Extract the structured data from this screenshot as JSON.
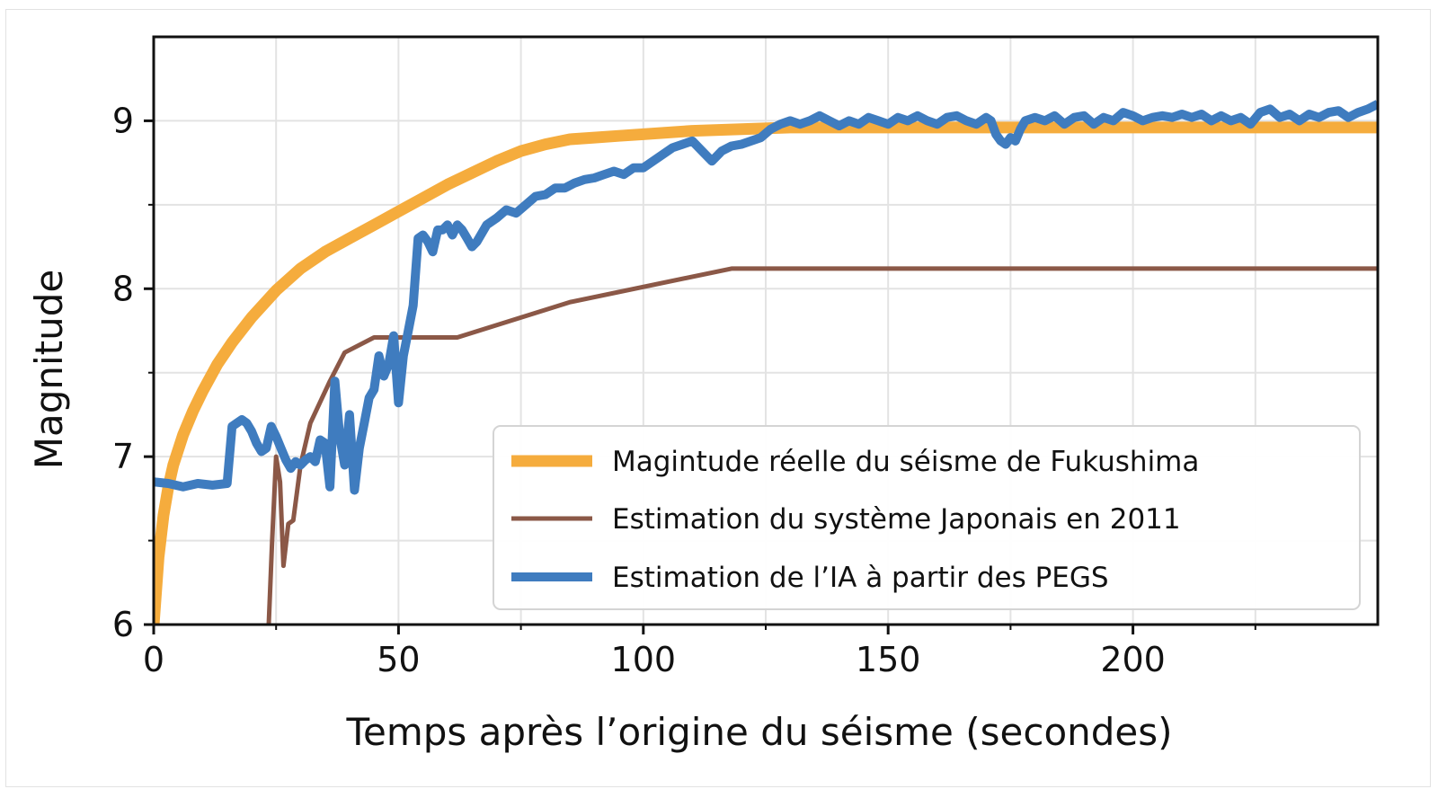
{
  "chart_data": {
    "type": "line",
    "title": "",
    "xlabel": "Temps après l’origine du séisme (secondes)",
    "ylabel": "Magnitude",
    "xlim": [
      0,
      250
    ],
    "ylim": [
      6,
      9.5
    ],
    "grid": true,
    "legend_position": "bottom-right",
    "xticks": [
      0,
      50,
      100,
      150,
      200
    ],
    "xticks_minor": [
      25,
      75,
      125,
      175,
      225
    ],
    "yticks": [
      6,
      7,
      8,
      9
    ],
    "yticks_minor": [
      6.5,
      7.5,
      8.5
    ],
    "series": [
      {
        "name": "Magintude réelle du séisme de Fukushima",
        "color": "#f5ac3d",
        "width": 13,
        "x": [
          0,
          1,
          2,
          3,
          4,
          6,
          8,
          10,
          13,
          16,
          20,
          25,
          30,
          35,
          40,
          45,
          50,
          55,
          60,
          65,
          70,
          75,
          80,
          85,
          90,
          95,
          100,
          110,
          120,
          130,
          140,
          150,
          175,
          200,
          225,
          250
        ],
        "y": [
          6.0,
          6.4,
          6.65,
          6.82,
          6.95,
          7.13,
          7.27,
          7.39,
          7.55,
          7.68,
          7.83,
          7.99,
          8.12,
          8.22,
          8.3,
          8.38,
          8.46,
          8.54,
          8.62,
          8.69,
          8.76,
          8.82,
          8.86,
          8.89,
          8.9,
          8.91,
          8.92,
          8.94,
          8.95,
          8.96,
          8.96,
          8.96,
          8.96,
          8.96,
          8.96,
          8.96
        ]
      },
      {
        "name": "Estimation du système Japonais en 2011",
        "color": "#8b5847",
        "width": 5,
        "x": [
          23.5,
          24.2,
          25,
          25.8,
          26.5,
          27.5,
          28.5,
          30,
          32,
          36,
          39,
          45,
          62,
          85,
          118,
          135,
          160,
          200,
          250
        ],
        "y": [
          6.0,
          6.5,
          7.0,
          6.85,
          6.35,
          6.6,
          6.62,
          6.95,
          7.2,
          7.45,
          7.62,
          7.71,
          7.71,
          7.92,
          8.12,
          8.12,
          8.12,
          8.12,
          8.12
        ]
      },
      {
        "name": "Estimation de l’IA à partir des PEGS",
        "color": "#3f7cbf",
        "width": 10,
        "x": [
          0,
          3,
          6,
          9,
          12,
          15,
          16,
          17,
          18,
          19,
          20,
          21,
          22,
          23,
          24,
          25,
          26,
          27,
          28,
          29,
          30,
          31,
          32,
          33,
          34,
          35,
          36,
          37,
          38,
          39,
          40,
          41,
          42,
          43,
          44,
          45,
          46,
          47,
          48,
          49,
          50,
          51,
          52,
          53,
          54,
          55,
          56,
          57,
          58,
          59,
          60,
          61,
          62,
          63,
          64,
          65,
          66,
          68,
          70,
          72,
          74,
          76,
          78,
          80,
          82,
          84,
          86,
          88,
          90,
          92,
          94,
          96,
          98,
          100,
          102,
          104,
          106,
          108,
          110,
          112,
          114,
          116,
          118,
          120,
          122,
          124,
          126,
          128,
          130,
          132,
          134,
          136,
          138,
          140,
          142,
          144,
          146,
          148,
          150,
          152,
          154,
          156,
          158,
          160,
          162,
          164,
          166,
          168,
          170,
          171,
          172,
          173,
          174,
          175,
          176,
          177,
          178,
          180,
          182,
          184,
          186,
          188,
          190,
          192,
          194,
          196,
          198,
          200,
          202,
          204,
          206,
          208,
          210,
          212,
          214,
          216,
          218,
          220,
          222,
          224,
          226,
          228,
          230,
          232,
          234,
          236,
          238,
          240,
          242,
          244,
          246,
          248,
          250
        ],
        "y": [
          6.85,
          6.84,
          6.82,
          6.84,
          6.83,
          6.84,
          7.18,
          7.2,
          7.22,
          7.2,
          7.15,
          7.08,
          7.03,
          7.05,
          7.18,
          7.12,
          7.05,
          6.98,
          6.93,
          6.97,
          6.95,
          6.98,
          7.0,
          6.97,
          7.1,
          7.08,
          6.82,
          7.45,
          7.12,
          6.95,
          7.25,
          6.8,
          7.05,
          7.2,
          7.35,
          7.4,
          7.6,
          7.48,
          7.55,
          7.72,
          7.32,
          7.6,
          7.75,
          7.9,
          8.3,
          8.32,
          8.28,
          8.22,
          8.35,
          8.35,
          8.38,
          8.32,
          8.38,
          8.35,
          8.3,
          8.25,
          8.28,
          8.38,
          8.42,
          8.47,
          8.45,
          8.5,
          8.55,
          8.56,
          8.6,
          8.6,
          8.63,
          8.65,
          8.66,
          8.68,
          8.7,
          8.68,
          8.72,
          8.72,
          8.76,
          8.8,
          8.84,
          8.86,
          8.88,
          8.82,
          8.76,
          8.82,
          8.85,
          8.86,
          8.88,
          8.9,
          8.95,
          8.98,
          9.0,
          8.98,
          9.0,
          9.03,
          9.0,
          8.97,
          9.0,
          8.98,
          9.02,
          9.0,
          8.98,
          9.02,
          9.0,
          9.03,
          9.0,
          8.98,
          9.02,
          9.03,
          9.0,
          8.98,
          9.02,
          9.0,
          8.92,
          8.88,
          8.86,
          8.9,
          8.88,
          8.95,
          9.0,
          9.02,
          9.0,
          9.03,
          8.98,
          9.02,
          9.03,
          8.98,
          9.02,
          9.0,
          9.05,
          9.03,
          9.0,
          9.02,
          9.03,
          9.02,
          9.04,
          9.02,
          9.04,
          9.0,
          9.03,
          9.0,
          9.02,
          8.98,
          9.05,
          9.07,
          9.02,
          9.04,
          9.0,
          9.04,
          9.02,
          9.05,
          9.06,
          9.02,
          9.05,
          9.07,
          9.1
        ]
      }
    ]
  }
}
